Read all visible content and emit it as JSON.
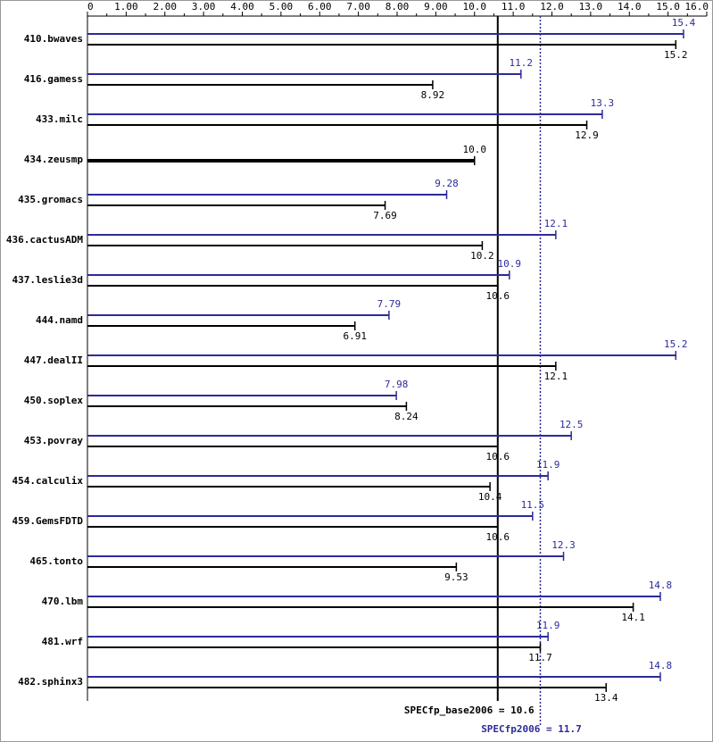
{
  "chart_data": {
    "type": "bar",
    "orientation": "horizontal",
    "categories": [
      "410.bwaves",
      "416.gamess",
      "433.milc",
      "434.zeusmp",
      "435.gromacs",
      "436.cactusADM",
      "437.leslie3d",
      "444.namd",
      "447.dealII",
      "450.soplex",
      "453.povray",
      "454.calculix",
      "459.GemsFDTD",
      "465.tonto",
      "470.lbm",
      "481.wrf",
      "482.sphinx3"
    ],
    "series": [
      {
        "color": "#2b2b9a",
        "values": [
          15.4,
          11.2,
          13.3,
          null,
          9.28,
          12.1,
          10.9,
          7.79,
          15.2,
          7.98,
          12.5,
          11.9,
          11.5,
          12.3,
          14.8,
          11.9,
          14.8
        ]
      },
      {
        "color": "#000000",
        "values": [
          15.2,
          8.92,
          12.9,
          10.0,
          7.69,
          10.2,
          10.6,
          6.91,
          12.1,
          8.24,
          10.6,
          10.4,
          10.6,
          9.53,
          14.1,
          11.7,
          13.4
        ],
        "value_labels": [
          "15.2",
          "8.92",
          "12.9",
          "10.0",
          "7.69",
          "10.2",
          "10.6",
          "6.91",
          "12.1",
          "8.24",
          "10.6",
          "10.4",
          "10.6",
          "9.53",
          "14.1",
          "11.7",
          "13.4"
        ]
      }
    ],
    "xlim": [
      0,
      16
    ],
    "xticks": [
      0,
      {
        "value": 1,
        "label": "1.00"
      },
      {
        "value": 2,
        "label": "2.00"
      },
      {
        "value": 3,
        "label": "3.00"
      },
      {
        "value": 4,
        "label": "4.00"
      },
      {
        "value": 5,
        "label": "5.00"
      },
      {
        "value": 6,
        "label": "6.00"
      },
      {
        "value": 7,
        "label": "7.00"
      },
      {
        "value": 8,
        "label": "8.00"
      },
      {
        "value": 9,
        "label": "9.00"
      },
      {
        "value": 10,
        "label": "10.0"
      },
      {
        "value": 11,
        "label": "11.0"
      },
      {
        "value": 12,
        "label": "12.0"
      },
      {
        "value": 13,
        "label": "13.0"
      },
      {
        "value": 14,
        "label": "14.0"
      },
      {
        "value": 15,
        "label": "15.0"
      },
      {
        "value": 16,
        "label": "16.0"
      }
    ],
    "reference_lines": [
      {
        "value": 10.6,
        "label": "SPECfp_base2006 = 10.6",
        "color": "#000000",
        "style": "solid"
      },
      {
        "value": 11.7,
        "label": "SPECfp2006 = 11.7",
        "color": "#2b2b9a",
        "style": "dotted"
      }
    ]
  }
}
